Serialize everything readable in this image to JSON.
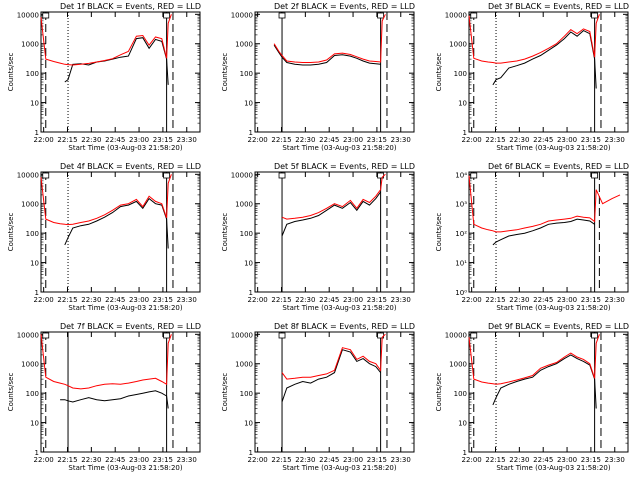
{
  "figure": {
    "time_labels": [
      "22:00",
      "22:15",
      "22:30",
      "22:45",
      "23:00",
      "23:15",
      "23:30"
    ],
    "xlabel": "Start Time (03-Aug-03 21:58:20)",
    "ylabel": "Counts/sec",
    "colors": {
      "events": "#000000",
      "lld": "#ff0000"
    }
  },
  "chart_data": [
    {
      "type": "line",
      "title": "Det 1f BLACK = Events, RED = LLD",
      "xlabel": "Start Time (03-Aug-03 21:58:20)",
      "ylabel": "Counts/sec",
      "ylim": [
        1,
        12000
      ],
      "yscale": "log",
      "y_ticks": [
        "1",
        "10",
        "100",
        "1000",
        "10000"
      ],
      "x_minutes": [
        0,
        3,
        8,
        12,
        15,
        17,
        20,
        25,
        30,
        35,
        40,
        45,
        50,
        55,
        60,
        64,
        68,
        72,
        76,
        79,
        80,
        82
      ],
      "series": [
        {
          "name": "Events",
          "values": [
            null,
            null,
            null,
            null,
            50,
            60,
            200,
            210,
            190,
            240,
            260,
            300,
            350,
            380,
            1500,
            1600,
            700,
            1400,
            1200,
            300,
            40,
            null
          ]
        },
        {
          "name": "LLD",
          "values": [
            8000,
            300,
            250,
            220,
            200,
            195,
            190,
            200,
            215,
            240,
            270,
            310,
            420,
            550,
            1800,
            1900,
            900,
            1700,
            1500,
            320,
            5000,
            10000
          ]
        }
      ],
      "vlines": [
        {
          "x": 3,
          "style": "dashed"
        },
        {
          "x": 17,
          "style": "dotted"
        },
        {
          "x": 79,
          "style": "solid"
        },
        {
          "x": 83,
          "style": "dashed"
        }
      ]
    },
    {
      "type": "line",
      "title": "Det 2f BLACK = Events, RED = LLD",
      "xlabel": "Start Time (03-Aug-03 21:58:20)",
      "ylabel": "Counts/sec",
      "ylim": [
        1,
        12000
      ],
      "yscale": "log",
      "y_ticks": [
        "1",
        "10",
        "100",
        "1000",
        "10000"
      ],
      "x_minutes": [
        0,
        3,
        8,
        12,
        15,
        17,
        20,
        25,
        30,
        35,
        40,
        45,
        50,
        55,
        60,
        64,
        68,
        72,
        76,
        79,
        80,
        82
      ],
      "series": [
        {
          "name": "Events",
          "values": [
            null,
            null,
            null,
            900,
            500,
            350,
            230,
            200,
            190,
            190,
            200,
            230,
            400,
            420,
            380,
            320,
            260,
            220,
            210,
            200,
            null,
            null
          ]
        },
        {
          "name": "LLD",
          "values": [
            null,
            null,
            null,
            1000,
            550,
            400,
            260,
            240,
            230,
            230,
            240,
            280,
            450,
            480,
            430,
            360,
            300,
            260,
            250,
            240,
            6000,
            10000
          ]
        }
      ],
      "vlines": [
        {
          "x": 17,
          "style": "solid"
        },
        {
          "x": 79,
          "style": "solid"
        },
        {
          "x": 83,
          "style": "dashed"
        }
      ]
    },
    {
      "type": "line",
      "title": "Det 3f BLACK = Events, RED = LLD",
      "xlabel": "Start Time (03-Aug-03 21:58:20)",
      "ylabel": "Counts/sec",
      "ylim": [
        1,
        12000
      ],
      "yscale": "log",
      "y_ticks": [
        "1",
        "10",
        "100",
        "1000",
        "10000"
      ],
      "x_minutes": [
        0,
        3,
        8,
        12,
        15,
        17,
        20,
        25,
        30,
        35,
        40,
        45,
        50,
        55,
        60,
        64,
        68,
        72,
        76,
        79,
        80,
        82
      ],
      "series": [
        {
          "name": "Events",
          "values": [
            null,
            null,
            null,
            null,
            40,
            60,
            70,
            150,
            180,
            220,
            300,
            400,
            600,
            900,
            1500,
            2500,
            1800,
            2800,
            2200,
            300,
            30,
            null
          ]
        },
        {
          "name": "LLD",
          "values": [
            9000,
            320,
            260,
            240,
            230,
            220,
            220,
            240,
            260,
            300,
            380,
            500,
            700,
            1000,
            1800,
            3000,
            2200,
            3200,
            2600,
            350,
            5000,
            10000
          ]
        }
      ],
      "vlines": [
        {
          "x": 3,
          "style": "dashed"
        },
        {
          "x": 17,
          "style": "dotted"
        },
        {
          "x": 79,
          "style": "solid"
        },
        {
          "x": 83,
          "style": "dashed"
        }
      ]
    },
    {
      "type": "line",
      "title": "Det 4f BLACK = Events, RED = LLD",
      "xlabel": "Start Time (03-Aug-03 21:58:20)",
      "ylabel": "Counts/sec",
      "ylim": [
        1,
        12000
      ],
      "yscale": "log",
      "y_ticks": [
        "1",
        "10",
        "100",
        "1000",
        "10000"
      ],
      "x_minutes": [
        0,
        3,
        8,
        12,
        15,
        17,
        20,
        25,
        30,
        35,
        40,
        45,
        50,
        55,
        60,
        64,
        68,
        72,
        76,
        79,
        80,
        82
      ],
      "series": [
        {
          "name": "Events",
          "values": [
            null,
            null,
            null,
            null,
            40,
            70,
            150,
            180,
            200,
            260,
            350,
            500,
            800,
            900,
            1200,
            700,
            1500,
            1000,
            900,
            300,
            30,
            null
          ]
        },
        {
          "name": "LLD",
          "values": [
            8000,
            300,
            230,
            210,
            200,
            195,
            200,
            230,
            260,
            320,
            420,
            600,
            900,
            1000,
            1400,
            800,
            1800,
            1200,
            1000,
            330,
            5000,
            10000
          ]
        }
      ],
      "vlines": [
        {
          "x": 3,
          "style": "dashed"
        },
        {
          "x": 17,
          "style": "dotted"
        },
        {
          "x": 79,
          "style": "solid"
        },
        {
          "x": 83,
          "style": "dashed"
        }
      ]
    },
    {
      "type": "line",
      "title": "Det 5f BLACK = Events, RED = LLD",
      "xlabel": "Start Time (03-Aug-03 21:58:20)",
      "ylabel": "Counts/sec",
      "ylim": [
        1,
        12000
      ],
      "yscale": "log",
      "y_ticks": [
        "1",
        "10",
        "100",
        "1000",
        "10000"
      ],
      "x_minutes": [
        0,
        3,
        8,
        12,
        15,
        17,
        20,
        25,
        30,
        35,
        40,
        45,
        50,
        55,
        60,
        64,
        68,
        72,
        76,
        79,
        80,
        82
      ],
      "series": [
        {
          "name": "Events",
          "values": [
            null,
            null,
            null,
            null,
            null,
            80,
            200,
            250,
            280,
            320,
            400,
            600,
            900,
            700,
            1100,
            600,
            1200,
            900,
            1500,
            2500,
            null,
            null
          ]
        },
        {
          "name": "LLD",
          "values": [
            null,
            null,
            null,
            null,
            null,
            350,
            300,
            320,
            350,
            400,
            500,
            700,
            1000,
            800,
            1300,
            700,
            1400,
            1100,
            1800,
            3000,
            8000,
            10000
          ]
        }
      ],
      "vlines": [
        {
          "x": 17,
          "style": "solid"
        },
        {
          "x": 79,
          "style": "solid"
        },
        {
          "x": 83,
          "style": "dashed"
        }
      ]
    },
    {
      "type": "line",
      "title": "Det 6f BLACK = Events, RED = LLD",
      "xlabel": "Start Time (03-Aug-03 21:58:20)",
      "ylabel": "Counts/sec",
      "ylim": [
        1,
        12000
      ],
      "yscale": "log",
      "y_ticks": [
        "10⁰",
        "10¹",
        "10²",
        "10³",
        "10⁴"
      ],
      "x_minutes": [
        0,
        3,
        8,
        12,
        15,
        17,
        20,
        25,
        30,
        35,
        40,
        45,
        50,
        55,
        60,
        64,
        68,
        72,
        76,
        79,
        80,
        84,
        90,
        95
      ],
      "series": [
        {
          "name": "Events",
          "values": [
            null,
            null,
            null,
            null,
            40,
            50,
            60,
            80,
            90,
            100,
            120,
            150,
            200,
            220,
            230,
            250,
            300,
            280,
            260,
            200,
            null,
            null,
            null,
            null
          ]
        },
        {
          "name": "LLD",
          "values": [
            9000,
            200,
            150,
            130,
            120,
            110,
            110,
            120,
            130,
            150,
            170,
            200,
            260,
            280,
            300,
            320,
            380,
            350,
            330,
            250,
            3000,
            1000,
            1500,
            2000
          ]
        }
      ],
      "vlines": [
        {
          "x": 3,
          "style": "dashed"
        },
        {
          "x": 17,
          "style": "dotted"
        },
        {
          "x": 79,
          "style": "solid"
        },
        {
          "x": 82,
          "style": "dashed"
        }
      ]
    },
    {
      "type": "line",
      "title": "Det 7f BLACK = Events, RED = LLD",
      "xlabel": "Start Time (03-Aug-03 21:58:20)",
      "ylabel": "Counts/sec",
      "ylim": [
        1,
        12000
      ],
      "yscale": "log",
      "y_ticks": [
        "1",
        "10",
        "100",
        "1000",
        "10000"
      ],
      "x_minutes": [
        0,
        3,
        8,
        12,
        15,
        17,
        20,
        25,
        30,
        35,
        40,
        45,
        50,
        55,
        60,
        64,
        68,
        72,
        76,
        79,
        80,
        82
      ],
      "series": [
        {
          "name": "Events",
          "values": [
            null,
            null,
            null,
            60,
            60,
            55,
            50,
            60,
            70,
            60,
            55,
            60,
            65,
            80,
            90,
            100,
            110,
            120,
            100,
            80,
            30,
            null
          ]
        },
        {
          "name": "LLD",
          "values": [
            10000,
            350,
            250,
            220,
            200,
            180,
            150,
            140,
            150,
            180,
            200,
            210,
            200,
            220,
            250,
            280,
            300,
            320,
            250,
            200,
            5000,
            10000
          ]
        }
      ],
      "vlines": [
        {
          "x": 3,
          "style": "dashed"
        },
        {
          "x": 17,
          "style": "solid"
        },
        {
          "x": 79,
          "style": "solid"
        },
        {
          "x": 83,
          "style": "dashed"
        }
      ]
    },
    {
      "type": "line",
      "title": "Det 8f BLACK = Events, RED = LLD",
      "xlabel": "Start Time (03-Aug-03 21:58:20)",
      "ylabel": "Counts/sec",
      "ylim": [
        1,
        12000
      ],
      "yscale": "log",
      "y_ticks": [
        "1",
        "10",
        "100",
        "1000",
        "10000"
      ],
      "x_minutes": [
        0,
        3,
        8,
        12,
        15,
        17,
        20,
        25,
        30,
        35,
        40,
        45,
        50,
        55,
        60,
        64,
        68,
        72,
        76,
        79,
        80,
        82
      ],
      "series": [
        {
          "name": "Events",
          "values": [
            null,
            null,
            null,
            null,
            null,
            50,
            150,
            200,
            250,
            220,
            300,
            350,
            500,
            3000,
            2500,
            1200,
            1500,
            1000,
            800,
            500,
            null,
            null
          ]
        },
        {
          "name": "LLD",
          "values": [
            null,
            null,
            null,
            null,
            null,
            500,
            300,
            320,
            350,
            350,
            400,
            450,
            600,
            3500,
            3000,
            1400,
            1800,
            1200,
            1000,
            600,
            8000,
            10000
          ]
        }
      ],
      "vlines": [
        {
          "x": 17,
          "style": "solid"
        },
        {
          "x": 79,
          "style": "solid"
        },
        {
          "x": 83,
          "style": "dashed"
        }
      ]
    },
    {
      "type": "line",
      "title": "Det 9f BLACK = Events, RED = LLD",
      "xlabel": "Start Time (03-Aug-03 21:58:20)",
      "ylabel": "Counts/sec",
      "ylim": [
        1,
        12000
      ],
      "yscale": "log",
      "y_ticks": [
        "1",
        "10",
        "100",
        "1000",
        "10000"
      ],
      "x_minutes": [
        0,
        3,
        8,
        12,
        15,
        17,
        20,
        25,
        30,
        35,
        40,
        45,
        50,
        55,
        60,
        64,
        68,
        72,
        76,
        79,
        80,
        82
      ],
      "series": [
        {
          "name": "Events",
          "values": [
            null,
            null,
            null,
            null,
            40,
            70,
            150,
            200,
            250,
            300,
            350,
            600,
            800,
            1000,
            1500,
            2000,
            1500,
            1200,
            900,
            300,
            30,
            null
          ]
        },
        {
          "name": "LLD",
          "values": [
            8000,
            300,
            240,
            220,
            210,
            200,
            210,
            240,
            280,
            330,
            400,
            700,
            900,
            1100,
            1700,
            2300,
            1700,
            1400,
            1000,
            320,
            5000,
            10000
          ]
        }
      ],
      "vlines": [
        {
          "x": 3,
          "style": "dashed"
        },
        {
          "x": 17,
          "style": "dotted"
        },
        {
          "x": 79,
          "style": "solid"
        },
        {
          "x": 83,
          "style": "dashed"
        }
      ]
    }
  ]
}
